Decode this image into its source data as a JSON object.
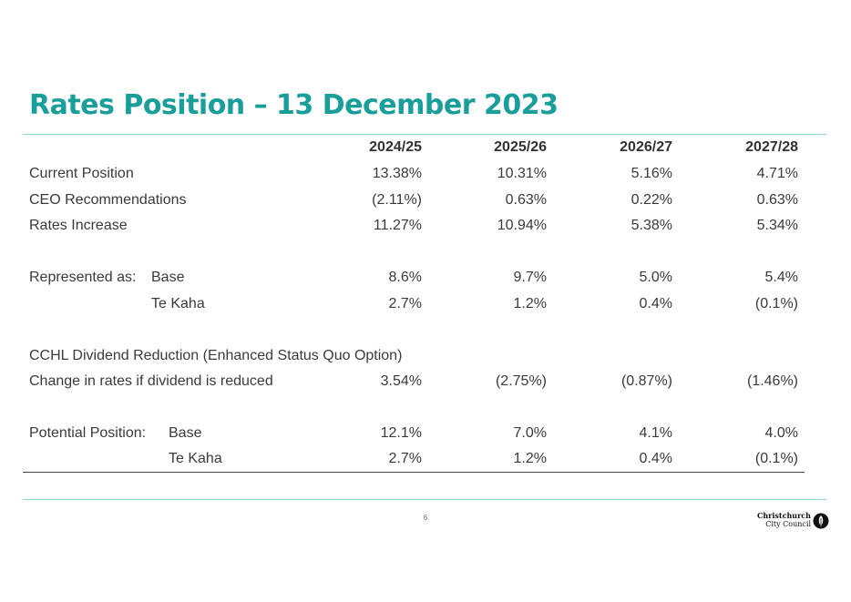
{
  "title": "Rates Position – 13 December 2023",
  "table": {
    "columns": [
      "2024/25",
      "2025/26",
      "2026/27",
      "2027/28"
    ],
    "rows": [
      {
        "label": "Current Position",
        "values": [
          "13.38%",
          "10.31%",
          "5.16%",
          "4.71%"
        ]
      },
      {
        "label": "CEO Recommendations",
        "values": [
          "(2.11%)",
          "0.63%",
          "0.22%",
          "0.63%"
        ]
      },
      {
        "label": "Rates Increase",
        "values": [
          "11.27%",
          "10.94%",
          "5.38%",
          "5.34%"
        ]
      },
      {
        "label": "Represented as:",
        "sublabel": "Base",
        "values": [
          "8.6%",
          "9.7%",
          "5.0%",
          "5.4%"
        ]
      },
      {
        "label": "",
        "sublabel": "Te Kaha",
        "values": [
          "2.7%",
          "1.2%",
          "0.4%",
          "(0.1%)"
        ]
      },
      {
        "label": "CCHL Dividend Reduction (Enhanced Status Quo Option)"
      },
      {
        "label": "Change in rates if dividend is reduced",
        "values": [
          "3.54%",
          "(2.75%)",
          "(0.87%)",
          "(1.46%)"
        ]
      },
      {
        "label": "Potential Position:",
        "sublabel": "Base",
        "values": [
          "12.1%",
          "7.0%",
          "4.1%",
          "4.0%"
        ]
      },
      {
        "label": "",
        "sublabel": "Te Kaha",
        "values": [
          "2.7%",
          "1.2%",
          "0.4%",
          "(0.1%)"
        ]
      }
    ]
  },
  "footer": {
    "page_number": "6",
    "logo_line1": "Christchurch",
    "logo_line2": "City Council",
    "logo_icon": "fern-circle-icon"
  },
  "colors": {
    "title": "#1a9e9a",
    "rule": "#8fd1cb",
    "text": "#3a3a3a"
  }
}
